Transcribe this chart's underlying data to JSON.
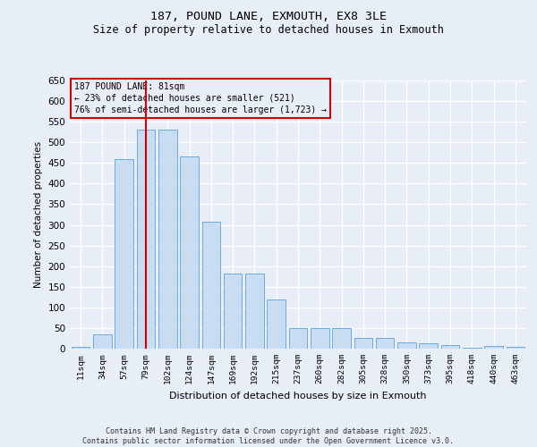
{
  "title": "187, POUND LANE, EXMOUTH, EX8 3LE",
  "subtitle": "Size of property relative to detached houses in Exmouth",
  "xlabel": "Distribution of detached houses by size in Exmouth",
  "ylabel": "Number of detached properties",
  "footer_line1": "Contains HM Land Registry data © Crown copyright and database right 2025.",
  "footer_line2": "Contains public sector information licensed under the Open Government Licence v3.0.",
  "categories": [
    "11sqm",
    "34sqm",
    "57sqm",
    "79sqm",
    "102sqm",
    "124sqm",
    "147sqm",
    "169sqm",
    "192sqm",
    "215sqm",
    "237sqm",
    "260sqm",
    "282sqm",
    "305sqm",
    "328sqm",
    "350sqm",
    "373sqm",
    "395sqm",
    "418sqm",
    "440sqm",
    "463sqm"
  ],
  "values": [
    5,
    35,
    460,
    530,
    530,
    465,
    308,
    183,
    183,
    120,
    50,
    50,
    50,
    27,
    27,
    15,
    12,
    9,
    3,
    6,
    5
  ],
  "bar_color": "#c9ddf2",
  "bar_edge_color": "#6aaae0",
  "bg_color": "#e8eef8",
  "grid_color": "#ffffff",
  "vline_x_idx": 3,
  "vline_color": "#cc0000",
  "ann_line1": "187 POUND LANE: 81sqm",
  "ann_line2": "← 23% of detached houses are smaller (521)",
  "ann_line3": "76% of semi-detached houses are larger (1,723) →",
  "ann_box_edge": "#cc0000",
  "ylim": [
    0,
    650
  ],
  "yticks": [
    0,
    50,
    100,
    150,
    200,
    250,
    300,
    350,
    400,
    450,
    500,
    550,
    600,
    650
  ]
}
